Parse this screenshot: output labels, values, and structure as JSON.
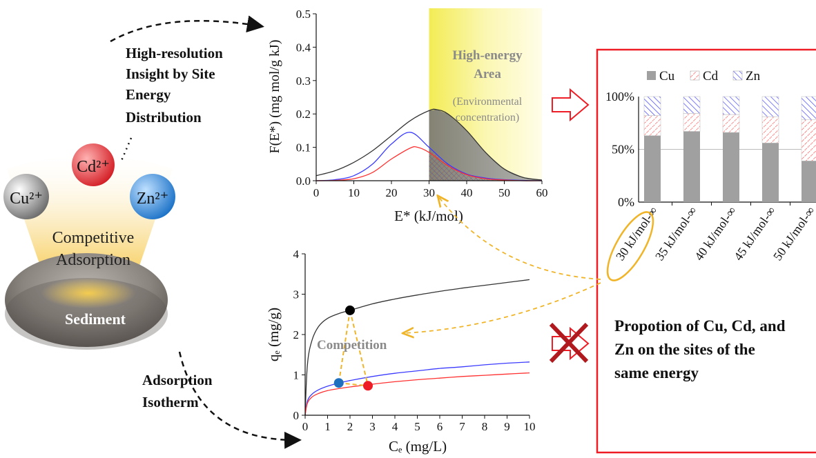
{
  "left_panel": {
    "ions": {
      "cd": "Cd²⁺",
      "cu": "Cu²⁺",
      "zn": "Zn²⁺"
    },
    "competitive_line1": "Competitive",
    "competitive_line2": "Adsorption",
    "sediment_label": "Sediment",
    "colors": {
      "cd": "#e8343a",
      "cu": "#8a8a8a",
      "zn": "#2a86d6"
    }
  },
  "annotations": {
    "sed_line1": "High-resolution",
    "sed_line2": "Insight by Site",
    "sed_line3": "Energy",
    "sed_line4": "Distribution",
    "iso_line1": "Adsorption",
    "iso_line2": "Isotherm",
    "proportion_line1": "Propotion of Cu, Cd, and",
    "proportion_line2": "Zn on the sites of the",
    "proportion_line3": "same energy"
  },
  "sed_chart": {
    "chart_data": {
      "type": "line",
      "xlabel": "E* (kJ/mol)",
      "ylabel": "F(E*) (mg mol/g kJ)",
      "xlim": [
        0,
        60
      ],
      "ylim": [
        0,
        0.5
      ],
      "x_ticks": [
        "0",
        "10",
        "20",
        "30",
        "40",
        "50",
        "60"
      ],
      "y_ticks": [
        "0.0",
        "0.1",
        "0.2",
        "0.3",
        "0.4",
        "0.5"
      ],
      "highlight_from": 30,
      "highlight_title_line1": "High-energy",
      "highlight_title_line2": "Area",
      "highlight_note_line1": "(Environmental",
      "highlight_note_line2": "concentration)",
      "series": [
        {
          "color": "#333333",
          "x": [
            0,
            5,
            10,
            15,
            20,
            25,
            30,
            32,
            35,
            40,
            45,
            50,
            55,
            60
          ],
          "y": [
            0.015,
            0.03,
            0.055,
            0.09,
            0.135,
            0.18,
            0.21,
            0.213,
            0.2,
            0.15,
            0.085,
            0.035,
            0.01,
            0.002
          ]
        },
        {
          "color": "#3b3bff",
          "x": [
            0,
            5,
            10,
            15,
            20,
            25,
            30,
            35,
            40,
            45,
            50,
            55,
            60
          ],
          "y": [
            0.0,
            0.003,
            0.015,
            0.05,
            0.11,
            0.145,
            0.1,
            0.05,
            0.02,
            0.008,
            0.003,
            0.001,
            0.0
          ]
        },
        {
          "color": "#ff3030",
          "x": [
            0,
            5,
            10,
            15,
            20,
            25,
            27,
            30,
            35,
            40,
            45,
            50,
            55,
            60
          ],
          "y": [
            0.0,
            0.001,
            0.006,
            0.025,
            0.065,
            0.098,
            0.1,
            0.085,
            0.045,
            0.018,
            0.006,
            0.002,
            0.0,
            0.0
          ]
        }
      ]
    }
  },
  "isotherm_chart": {
    "chart_data": {
      "type": "line",
      "xlabel": "Cₑ (mg/L)",
      "ylabel": "qₑ (mg/g)",
      "xlim": [
        0,
        10
      ],
      "ylim": [
        0,
        4
      ],
      "x_ticks": [
        "0",
        "1",
        "2",
        "3",
        "4",
        "5",
        "6",
        "7",
        "8",
        "9",
        "10"
      ],
      "y_ticks": [
        "0",
        "1",
        "2",
        "3",
        "4"
      ],
      "annotation": "Competition",
      "series": [
        {
          "color": "#333333",
          "x": [
            0,
            0.1,
            0.3,
            0.6,
            1,
            1.5,
            2,
            3,
            4,
            5,
            6,
            7,
            8,
            9,
            10
          ],
          "y": [
            0,
            1.25,
            1.85,
            2.2,
            2.4,
            2.52,
            2.6,
            2.76,
            2.88,
            2.98,
            3.07,
            3.15,
            3.22,
            3.29,
            3.36
          ]
        },
        {
          "color": "#3b3bff",
          "x": [
            0,
            0.1,
            0.3,
            0.6,
            1,
            1.5,
            2,
            3,
            4,
            5,
            6,
            7,
            8,
            9,
            10
          ],
          "y": [
            0,
            0.35,
            0.52,
            0.63,
            0.72,
            0.8,
            0.86,
            0.96,
            1.04,
            1.1,
            1.16,
            1.2,
            1.25,
            1.29,
            1.32
          ]
        },
        {
          "color": "#ff3030",
          "x": [
            0,
            0.1,
            0.3,
            0.6,
            1,
            1.5,
            2,
            3,
            4,
            5,
            6,
            7,
            8,
            9,
            10
          ],
          "y": [
            0,
            0.3,
            0.45,
            0.54,
            0.61,
            0.66,
            0.7,
            0.77,
            0.83,
            0.88,
            0.92,
            0.96,
            0.99,
            1.02,
            1.05
          ]
        }
      ],
      "points": [
        {
          "name": "Cu",
          "x": 2.0,
          "y": 2.6,
          "color": "#000000"
        },
        {
          "name": "Zn",
          "x": 1.5,
          "y": 0.8,
          "color": "#1f6fbf"
        },
        {
          "name": "Cd",
          "x": 2.8,
          "y": 0.73,
          "color": "#ee1c24"
        }
      ]
    }
  },
  "bar_chart": {
    "chart_data": {
      "type": "bar",
      "stacked": true,
      "categories": [
        "30 kJ/mol-∞",
        "35 kJ/mol-∞",
        "40 kJ/mol-∞",
        "45 kJ/mol-∞",
        "50 kJ/mol-∞"
      ],
      "ylim": [
        0,
        100
      ],
      "y_ticks": [
        "0%",
        "50%",
        "100%"
      ],
      "series": [
        {
          "name": "Cu",
          "color": "#a0a0a0",
          "values": [
            63,
            67,
            66,
            56,
            39
          ]
        },
        {
          "name": "Cd",
          "color": "#ff6060",
          "values": [
            19,
            17,
            17,
            25,
            39
          ]
        },
        {
          "name": "Zn",
          "color": "#4040ff",
          "values": [
            18,
            16,
            17,
            19,
            22
          ]
        }
      ]
    }
  }
}
